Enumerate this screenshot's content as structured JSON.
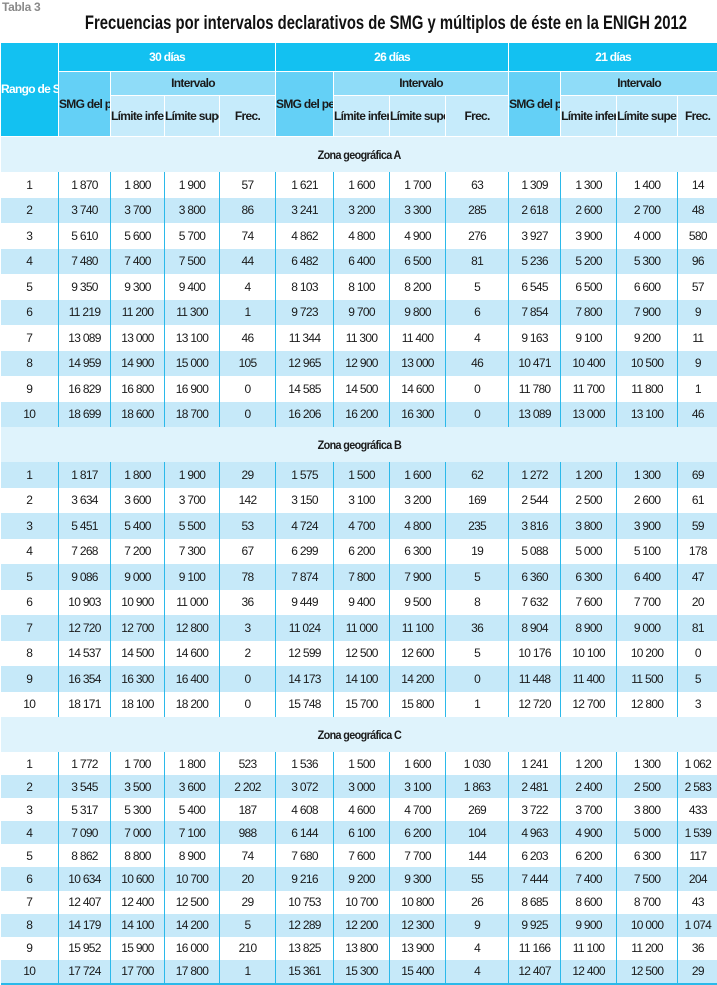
{
  "label": "Tabla 3",
  "title": "Frecuencias por intervalos declarativos de SMG y múltiplos de éste en la ENIGH 2012",
  "colors": {
    "header": "#13c1f1",
    "smg_header": "#64d0f6",
    "interval_header": "#8fdcf8",
    "sub_header": "#c6ebfb",
    "zone_row": "#dff3fc",
    "shaded_row": "#c6e9f9",
    "rule": "#2bb9ea"
  },
  "headers": {
    "rango": "Rango de SMG",
    "periods": [
      "30 días",
      "26 días",
      "21 días"
    ],
    "smg": "SMG del periodo",
    "intervalo": "Intervalo",
    "lim_inf": "Límite inferior",
    "lim_sup": "Límite superior",
    "frec": "Frec."
  },
  "zones": [
    {
      "name": "Zona geográfica A",
      "rows": [
        [
          "1",
          "1 870",
          "1 800",
          "1 900",
          "57",
          "1 621",
          "1 600",
          "1 700",
          "63",
          "1 309",
          "1 300",
          "1 400",
          "14"
        ],
        [
          "2",
          "3 740",
          "3 700",
          "3 800",
          "86",
          "3 241",
          "3 200",
          "3 300",
          "285",
          "2 618",
          "2 600",
          "2 700",
          "48"
        ],
        [
          "3",
          "5 610",
          "5 600",
          "5 700",
          "74",
          "4 862",
          "4 800",
          "4 900",
          "276",
          "3 927",
          "3 900",
          "4 000",
          "580"
        ],
        [
          "4",
          "7 480",
          "7 400",
          "7 500",
          "44",
          "6 482",
          "6 400",
          "6 500",
          "81",
          "5 236",
          "5 200",
          "5 300",
          "96"
        ],
        [
          "5",
          "9 350",
          "9 300",
          "9 400",
          "4",
          "8 103",
          "8 100",
          "8 200",
          "5",
          "6 545",
          "6 500",
          "6 600",
          "57"
        ],
        [
          "6",
          "11 219",
          "11 200",
          "11 300",
          "1",
          "9 723",
          "9 700",
          "9 800",
          "6",
          "7 854",
          "7 800",
          "7 900",
          "9"
        ],
        [
          "7",
          "13 089",
          "13 000",
          "13 100",
          "46",
          "11 344",
          "11 300",
          "11 400",
          "4",
          "9 163",
          "9 100",
          "9 200",
          "11"
        ],
        [
          "8",
          "14 959",
          "14 900",
          "15 000",
          "105",
          "12 965",
          "12 900",
          "13 000",
          "46",
          "10 471",
          "10 400",
          "10 500",
          "9"
        ],
        [
          "9",
          "16 829",
          "16 800",
          "16 900",
          "0",
          "14 585",
          "14 500",
          "14 600",
          "0",
          "11 780",
          "11 700",
          "11 800",
          "1"
        ],
        [
          "10",
          "18 699",
          "18 600",
          "18 700",
          "0",
          "16 206",
          "16 200",
          "16 300",
          "0",
          "13 089",
          "13 000",
          "13 100",
          "46"
        ]
      ]
    },
    {
      "name": "Zona geográfica B",
      "rows": [
        [
          "1",
          "1 817",
          "1 800",
          "1 900",
          "29",
          "1 575",
          "1 500",
          "1 600",
          "62",
          "1 272",
          "1 200",
          "1 300",
          "69"
        ],
        [
          "2",
          "3 634",
          "3 600",
          "3 700",
          "142",
          "3 150",
          "3 100",
          "3 200",
          "169",
          "2 544",
          "2 500",
          "2 600",
          "61"
        ],
        [
          "3",
          "5 451",
          "5 400",
          "5 500",
          "53",
          "4 724",
          "4 700",
          "4 800",
          "235",
          "3 816",
          "3 800",
          "3 900",
          "59"
        ],
        [
          "4",
          "7 268",
          "7 200",
          "7 300",
          "67",
          "6 299",
          "6 200",
          "6 300",
          "19",
          "5 088",
          "5 000",
          "5 100",
          "178"
        ],
        [
          "5",
          "9 086",
          "9 000",
          "9 100",
          "78",
          "7 874",
          "7 800",
          "7 900",
          "5",
          "6 360",
          "6 300",
          "6 400",
          "47"
        ],
        [
          "6",
          "10 903",
          "10 900",
          "11 000",
          "36",
          "9 449",
          "9 400",
          "9 500",
          "8",
          "7 632",
          "7 600",
          "7 700",
          "20"
        ],
        [
          "7",
          "12 720",
          "12 700",
          "12 800",
          "3",
          "11 024",
          "11 000",
          "11 100",
          "36",
          "8 904",
          "8 900",
          "9 000",
          "81"
        ],
        [
          "8",
          "14 537",
          "14 500",
          "14 600",
          "2",
          "12 599",
          "12 500",
          "12 600",
          "5",
          "10 176",
          "10 100",
          "10 200",
          "0"
        ],
        [
          "9",
          "16 354",
          "16 300",
          "16 400",
          "0",
          "14 173",
          "14 100",
          "14 200",
          "0",
          "11 448",
          "11 400",
          "11 500",
          "5"
        ],
        [
          "10",
          "18 171",
          "18 100",
          "18 200",
          "0",
          "15 748",
          "15 700",
          "15 800",
          "1",
          "12 720",
          "12 700",
          "12 800",
          "3"
        ]
      ]
    },
    {
      "name": "Zona geográfica C",
      "rows": [
        [
          "1",
          "1 772",
          "1 700",
          "1 800",
          "523",
          "1 536",
          "1 500",
          "1 600",
          "1 030",
          "1 241",
          "1 200",
          "1 300",
          "1 062"
        ],
        [
          "2",
          "3 545",
          "3 500",
          "3 600",
          "2 202",
          "3 072",
          "3 000",
          "3 100",
          "1 863",
          "2 481",
          "2 400",
          "2 500",
          "2 583"
        ],
        [
          "3",
          "5 317",
          "5 300",
          "5 400",
          "187",
          "4 608",
          "4 600",
          "4 700",
          "269",
          "3 722",
          "3 700",
          "3 800",
          "433"
        ],
        [
          "4",
          "7 090",
          "7 000",
          "7 100",
          "988",
          "6 144",
          "6 100",
          "6 200",
          "104",
          "4 963",
          "4 900",
          "5 000",
          "1 539"
        ],
        [
          "5",
          "8 862",
          "8 800",
          "8 900",
          "74",
          "7 680",
          "7 600",
          "7 700",
          "144",
          "6 203",
          "6 200",
          "6 300",
          "117"
        ],
        [
          "6",
          "10 634",
          "10 600",
          "10 700",
          "20",
          "9 216",
          "9 200",
          "9 300",
          "55",
          "7 444",
          "7 400",
          "7 500",
          "204"
        ],
        [
          "7",
          "12 407",
          "12 400",
          "12 500",
          "29",
          "10 753",
          "10 700",
          "10 800",
          "26",
          "8 685",
          "8 600",
          "8 700",
          "43"
        ],
        [
          "8",
          "14 179",
          "14 100",
          "14 200",
          "5",
          "12 289",
          "12 200",
          "12 300",
          "9",
          "9 925",
          "9 900",
          "10 000",
          "1 074"
        ],
        [
          "9",
          "15 952",
          "15 900",
          "16 000",
          "210",
          "13 825",
          "13 800",
          "13 900",
          "4",
          "11 166",
          "11 100",
          "11 200",
          "36"
        ],
        [
          "10",
          "17 724",
          "17 700",
          "17 800",
          "1",
          "15 361",
          "15 300",
          "15 400",
          "4",
          "12 407",
          "12 400",
          "12 500",
          "29"
        ]
      ]
    }
  ]
}
